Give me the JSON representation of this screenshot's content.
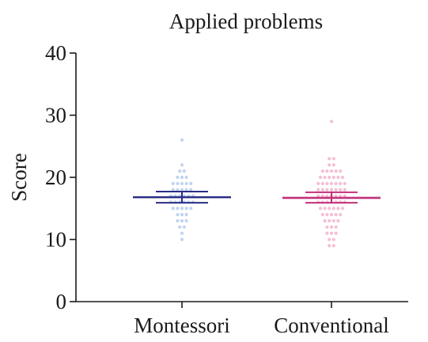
{
  "chart_data": {
    "type": "scatter",
    "title": "Applied problems",
    "xlabel": "",
    "ylabel": "Score",
    "ylim": [
      0,
      40
    ],
    "yticks": [
      0,
      10,
      20,
      30,
      40
    ],
    "grid": false,
    "categories": [
      "Montessori",
      "Conventional"
    ],
    "series": [
      {
        "category": "Montessori",
        "point_color": "#c2d3ef",
        "summary_color": "#2b2d86",
        "mean": 16.8,
        "ci": [
          15.9,
          17.7
        ],
        "values": [
          26,
          22,
          21,
          21,
          20,
          20,
          20,
          19,
          19,
          19,
          19,
          19,
          18,
          18,
          18,
          18,
          18,
          17,
          17,
          17,
          17,
          17,
          17,
          16,
          16,
          16,
          16,
          16,
          16,
          15,
          15,
          15,
          15,
          15,
          14,
          14,
          14,
          13,
          13,
          13,
          12,
          12,
          11,
          10
        ]
      },
      {
        "category": "Conventional",
        "point_color": "#f3bfd6",
        "summary_color": "#c2317a",
        "mean": 16.7,
        "ci": [
          15.9,
          17.6
        ],
        "values": [
          29,
          23,
          23,
          22,
          22,
          21,
          21,
          21,
          21,
          21,
          20,
          20,
          20,
          20,
          20,
          20,
          19,
          19,
          19,
          19,
          19,
          19,
          19,
          18,
          18,
          18,
          18,
          18,
          18,
          18,
          17,
          17,
          17,
          17,
          17,
          17,
          17,
          16,
          16,
          16,
          16,
          16,
          16,
          16,
          15,
          15,
          15,
          15,
          15,
          15,
          14,
          14,
          14,
          14,
          14,
          13,
          13,
          13,
          13,
          12,
          12,
          12,
          11,
          11,
          11,
          10,
          10,
          9,
          9
        ]
      }
    ]
  }
}
